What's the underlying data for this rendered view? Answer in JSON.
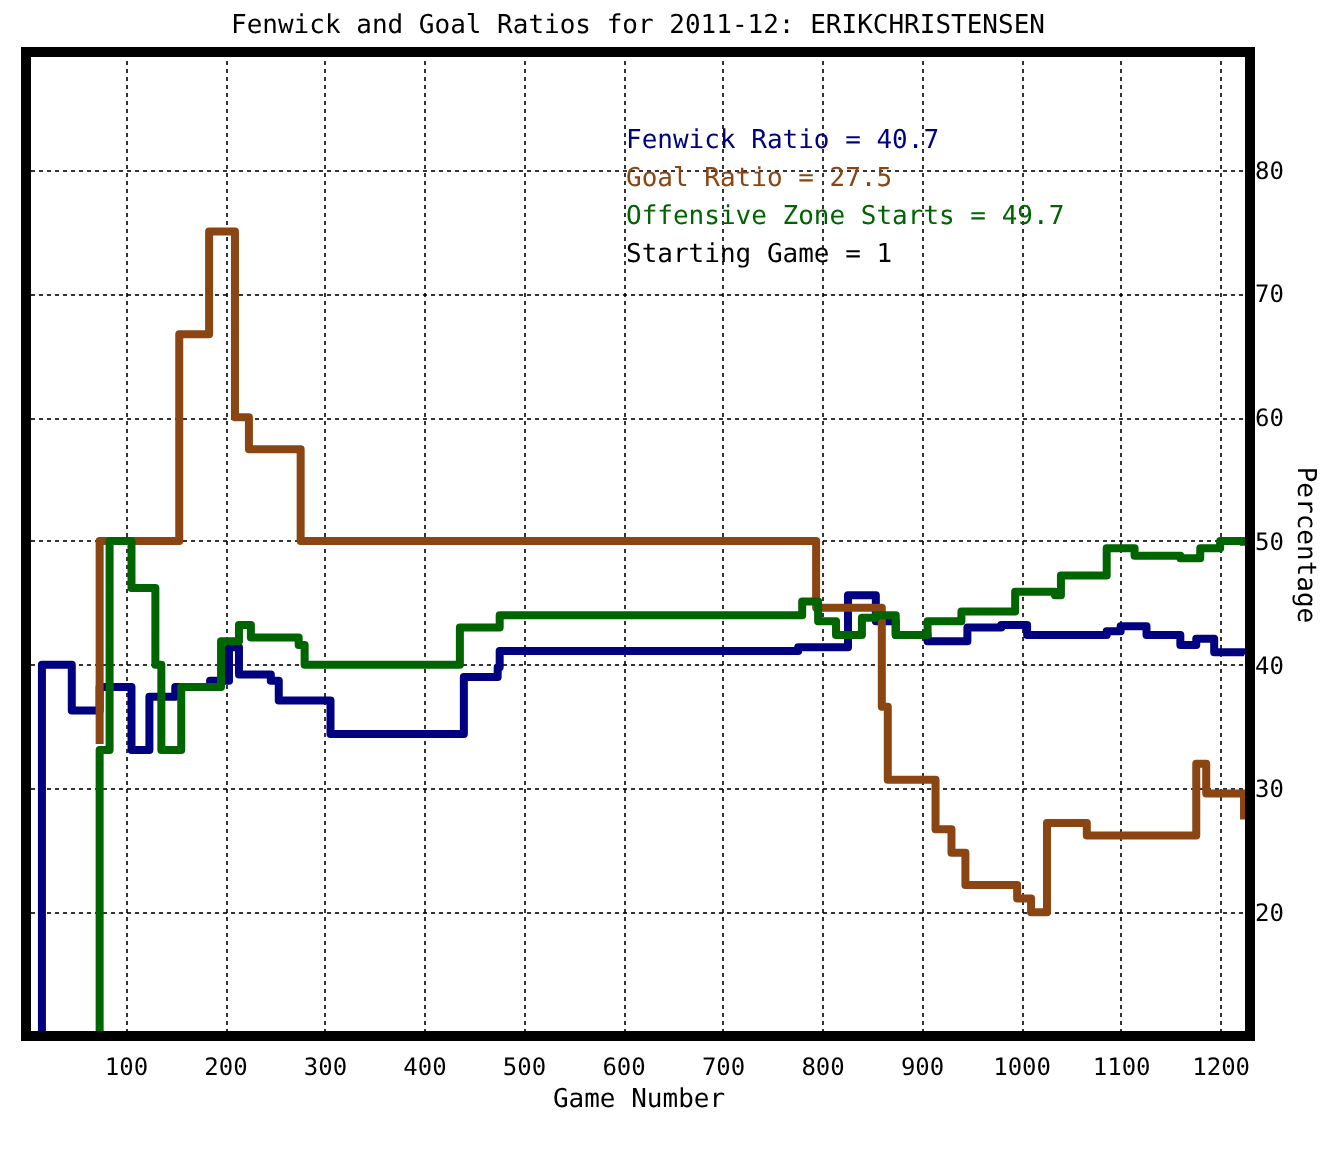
{
  "chart_data": {
    "type": "step",
    "title": "Fenwick and Goal Ratios for 2011-12: ERIKCHRISTENSEN",
    "xlabel": "Game Number",
    "ylabel": "Percentage",
    "xlim": [
      0,
      1230
    ],
    "ylim": [
      10,
      89.5
    ],
    "xticks": [
      100,
      200,
      300,
      400,
      500,
      600,
      700,
      800,
      900,
      1000,
      1100,
      1200
    ],
    "yticks": [
      20,
      30,
      40,
      50,
      60,
      70,
      80
    ],
    "grid": true,
    "line_style": "solid",
    "marker": "none",
    "annotations": [
      "Starting Game = 1"
    ],
    "series": [
      {
        "name": "Fenwick Ratio = 40.7",
        "color": "#000080",
        "x": [
          16,
          16,
          46,
          74,
          106,
          124,
          150,
          185,
          204,
          214,
          246,
          254,
          300,
          306,
          430,
          440,
          474,
          476,
          776,
          806,
          826,
          854,
          874,
          906,
          946,
          980,
          1006,
          1086,
          1100,
          1126,
          1160,
          1176,
          1194,
          1224
        ],
        "values": [
          10,
          40,
          36.3,
          38.2,
          33.1,
          37.4,
          38.2,
          38.7,
          41.4,
          39.2,
          38.7,
          37.1,
          37.1,
          34.4,
          34.4,
          39.0,
          39.8,
          41.1,
          41.4,
          41.4,
          45.6,
          43.5,
          42.4,
          41.9,
          43.0,
          43.2,
          42.4,
          42.7,
          43.1,
          42.4,
          41.6,
          42.1,
          41.0,
          40.8
        ]
      },
      {
        "name": "Goal Ratio = 27.5",
        "color": "#8b4513",
        "x": [
          74,
          74,
          154,
          184,
          210,
          214,
          224,
          276,
          786,
          794,
          850,
          860,
          866,
          906,
          914,
          930,
          944,
          990,
          996,
          1010,
          1024,
          1026,
          1060,
          1066,
          1174,
          1176,
          1186,
          1220,
          1224
        ],
        "values": [
          33.6,
          50,
          66.7,
          75.0,
          60,
          60,
          57.4,
          50,
          50,
          44.6,
          44.6,
          36.6,
          30.7,
          30.7,
          26.7,
          24.8,
          22.2,
          22.2,
          21.1,
          20,
          20,
          27.2,
          27.2,
          26.2,
          26.2,
          32.0,
          29.6,
          29.6,
          27.5
        ]
      },
      {
        "name": "Offensive Zone Starts = 49.7",
        "color": "#006400",
        "x": [
          74,
          74,
          84,
          100,
          106,
          124,
          130,
          136,
          154,
          156,
          180,
          196,
          214,
          226,
          274,
          280,
          430,
          436,
          460,
          476,
          770,
          780,
          796,
          814,
          840,
          854,
          874,
          906,
          940,
          990,
          994,
          1034,
          1040,
          1080,
          1086,
          1114,
          1154,
          1160,
          1180,
          1200,
          1224
        ],
        "values": [
          10,
          33.1,
          50,
          50,
          46.2,
          46.2,
          40,
          33.1,
          33.1,
          38.2,
          38.2,
          41.9,
          43.2,
          42.2,
          41.6,
          40,
          40,
          43.0,
          43.0,
          44.0,
          44.0,
          45.1,
          43.5,
          42.4,
          43.8,
          44.0,
          42.4,
          43.5,
          44.3,
          44.3,
          45.9,
          45.6,
          47.2,
          47.2,
          49.4,
          48.8,
          48.8,
          48.6,
          49.4,
          50,
          49.6
        ]
      }
    ]
  }
}
